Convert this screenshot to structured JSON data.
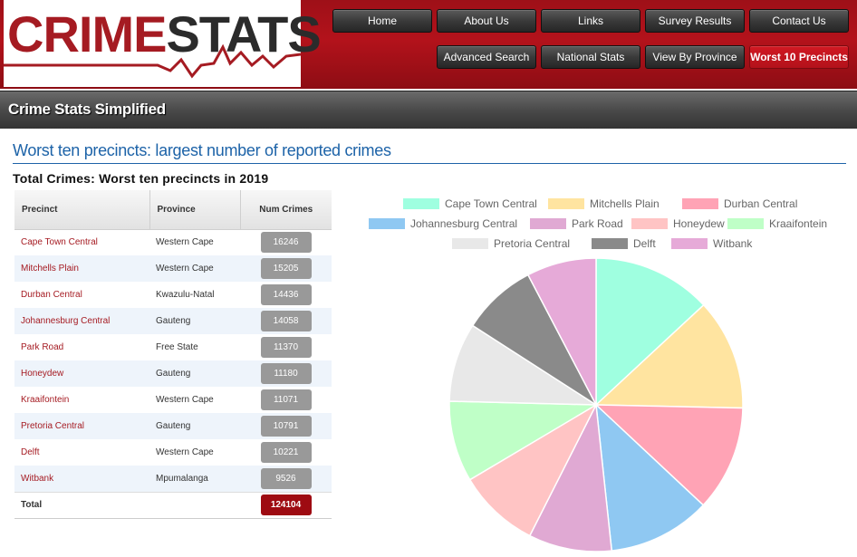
{
  "logo": {
    "part1": "CRIME",
    "part2": "STATS"
  },
  "nav": {
    "row1": [
      "Home",
      "About Us",
      "Links",
      "Survey Results",
      "Contact Us"
    ],
    "row2": [
      "Advanced Search",
      "National Stats",
      "View By Province",
      "Worst 10 Precincts"
    ],
    "active": "Worst 10 Precincts"
  },
  "titlebar": "Crime Stats Simplified",
  "heading": "Worst ten precincts: largest number of reported crimes",
  "section_title": "Total Crimes: Worst ten precincts in 2019",
  "table": {
    "headers": [
      "Precinct",
      "Province",
      "Num Crimes"
    ],
    "rows": [
      {
        "precinct": "Cape Town Central",
        "province": "Western Cape",
        "crimes": "16246"
      },
      {
        "precinct": "Mitchells Plain",
        "province": "Western Cape",
        "crimes": "15205"
      },
      {
        "precinct": "Durban Central",
        "province": "Kwazulu-Natal",
        "crimes": "14436"
      },
      {
        "precinct": "Johannesburg Central",
        "province": "Gauteng",
        "crimes": "14058"
      },
      {
        "precinct": "Park Road",
        "province": "Free State",
        "crimes": "11370"
      },
      {
        "precinct": "Honeydew",
        "province": "Gauteng",
        "crimes": "11180"
      },
      {
        "precinct": "Kraaifontein",
        "province": "Western Cape",
        "crimes": "11071"
      },
      {
        "precinct": "Pretoria Central",
        "province": "Gauteng",
        "crimes": "10791"
      },
      {
        "precinct": "Delft",
        "province": "Western Cape",
        "crimes": "10221"
      },
      {
        "precinct": "Witbank",
        "province": "Mpumalanga",
        "crimes": "9526"
      }
    ],
    "total_label": "Total",
    "total_value": "124104"
  },
  "colors": {
    "brand_red": "#b3121b",
    "heading_blue": "#1d63a8",
    "badge_gray": "#999999",
    "badge_total": "#9e0b12"
  },
  "chart_data": {
    "type": "pie",
    "categories": [
      "Cape Town Central",
      "Mitchells Plain",
      "Durban Central",
      "Johannesburg Central",
      "Park Road",
      "Honeydew",
      "Kraaifontein",
      "Pretoria Central",
      "Delft",
      "Witbank"
    ],
    "values": [
      16246,
      15205,
      14436,
      14058,
      11370,
      11180,
      11071,
      10791,
      10221,
      9526
    ],
    "colors": [
      "#9fffe0",
      "#ffe4a0",
      "#ffa3b5",
      "#8fc8f2",
      "#e0a9d3",
      "#ffc4c4",
      "#bfffc7",
      "#e8e8e8",
      "#8a8a8a",
      "#e6aad8"
    ],
    "legend_position": "top"
  }
}
